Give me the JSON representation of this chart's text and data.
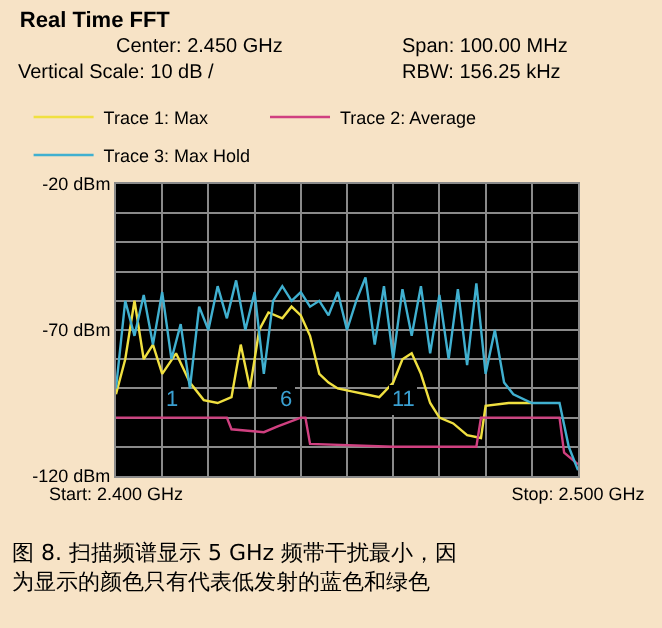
{
  "chart_data": {
    "type": "line",
    "title": "Real Time FFT",
    "annotations": [
      "Center: 2.450 GHz",
      "Span: 100.00 MHz",
      "Vertical Scale: 10 dB /",
      "RBW: 156.25 kHz",
      {
        "text": "1",
        "x": 2.412,
        "y": -94
      },
      {
        "text": "6",
        "x": 2.437,
        "y": -94
      },
      {
        "text": "11",
        "x": 2.462,
        "y": -94
      },
      "图 8. 扫描频谱显示 5 GHz 频带干扰最小，因为显示的颜色只有代表低发射的蓝色和绿色"
    ],
    "series": [
      {
        "name": "Trace 1: Max",
        "color": "#f0e040",
        "x": [
          2.4,
          2.402,
          2.404,
          2.406,
          2.408,
          2.41,
          2.413,
          2.416,
          2.419,
          2.422,
          2.425,
          2.427,
          2.429,
          2.431,
          2.433,
          2.436,
          2.438,
          2.44,
          2.442,
          2.444,
          2.446,
          2.448,
          2.451,
          2.454,
          2.457,
          2.46,
          2.462,
          2.464,
          2.466,
          2.468,
          2.47,
          2.473,
          2.476,
          2.479,
          2.48,
          2.485,
          2.49
        ],
        "values": [
          -92,
          -80,
          -60,
          -80,
          -75,
          -85,
          -78,
          -88,
          -94,
          -95,
          -93,
          -75,
          -90,
          -70,
          -64,
          -66,
          -62,
          -65,
          -72,
          -85,
          -88,
          -90,
          -91,
          -92,
          -93,
          -88,
          -80,
          -78,
          -85,
          -95,
          -100,
          -102,
          -106,
          -107,
          -96,
          -95,
          -95
        ]
      },
      {
        "name": "Trace 2: Average",
        "color": "#d04080",
        "x": [
          2.4,
          2.42,
          2.424,
          2.425,
          2.432,
          2.435,
          2.44,
          2.441,
          2.442,
          2.46,
          2.478,
          2.479,
          2.496,
          2.497,
          2.5
        ],
        "values": [
          -100,
          -100,
          -100,
          -104,
          -105,
          -103,
          -100,
          -100,
          -109,
          -110,
          -110,
          -100,
          -100,
          -112,
          -116
        ]
      },
      {
        "name": "Trace 3: Max Hold",
        "color": "#40b0d0",
        "x": [
          2.4,
          2.402,
          2.404,
          2.406,
          2.408,
          2.41,
          2.412,
          2.414,
          2.416,
          2.418,
          2.42,
          2.422,
          2.424,
          2.426,
          2.428,
          2.43,
          2.432,
          2.434,
          2.436,
          2.438,
          2.44,
          2.442,
          2.444,
          2.446,
          2.448,
          2.45,
          2.452,
          2.454,
          2.456,
          2.458,
          2.46,
          2.462,
          2.464,
          2.466,
          2.468,
          2.47,
          2.472,
          2.474,
          2.476,
          2.478,
          2.48,
          2.482,
          2.484,
          2.486,
          2.49,
          2.496,
          2.498,
          2.5
        ],
        "values": [
          -90,
          -60,
          -72,
          -58,
          -75,
          -57,
          -80,
          -68,
          -90,
          -62,
          -70,
          -55,
          -66,
          -53,
          -70,
          -57,
          -85,
          -60,
          -55,
          -60,
          -57,
          -62,
          -60,
          -65,
          -57,
          -70,
          -60,
          -52,
          -75,
          -55,
          -80,
          -56,
          -72,
          -55,
          -78,
          -58,
          -80,
          -56,
          -82,
          -54,
          -85,
          -70,
          -88,
          -92,
          -95,
          -95,
          -110,
          -118
        ]
      }
    ],
    "xlim": [
      2.4,
      2.5
    ],
    "xticks": [
      {
        "value": 2.4,
        "label": "Start: 2.400 GHz"
      },
      {
        "value": 2.41,
        "label": null
      },
      {
        "value": 2.42,
        "label": null
      },
      {
        "value": 2.43,
        "label": null
      },
      {
        "value": 2.44,
        "label": null
      },
      {
        "value": 2.45,
        "label": null
      },
      {
        "value": 2.46,
        "label": null
      },
      {
        "value": 2.47,
        "label": null
      },
      {
        "value": 2.48,
        "label": null
      },
      {
        "value": 2.49,
        "label": null
      },
      {
        "value": 2.5,
        "label": "Stop: 2.500 GHz"
      }
    ],
    "ylim": [
      -120,
      -20
    ],
    "yticks": [
      {
        "value": -120,
        "label": "-120 dBm"
      },
      {
        "value": -110,
        "label": null
      },
      {
        "value": -100,
        "label": null
      },
      {
        "value": -90,
        "label": null
      },
      {
        "value": -80,
        "label": null
      },
      {
        "value": -70,
        "label": "-70 dBm"
      },
      {
        "value": -60,
        "label": null
      },
      {
        "value": -50,
        "label": null
      },
      {
        "value": -40,
        "label": null
      },
      {
        "value": -30,
        "label": null
      },
      {
        "value": -20,
        "label": "-20 dBm"
      }
    ],
    "grid": true,
    "legend": "top",
    "line_style": "solid",
    "marker": "none"
  }
}
